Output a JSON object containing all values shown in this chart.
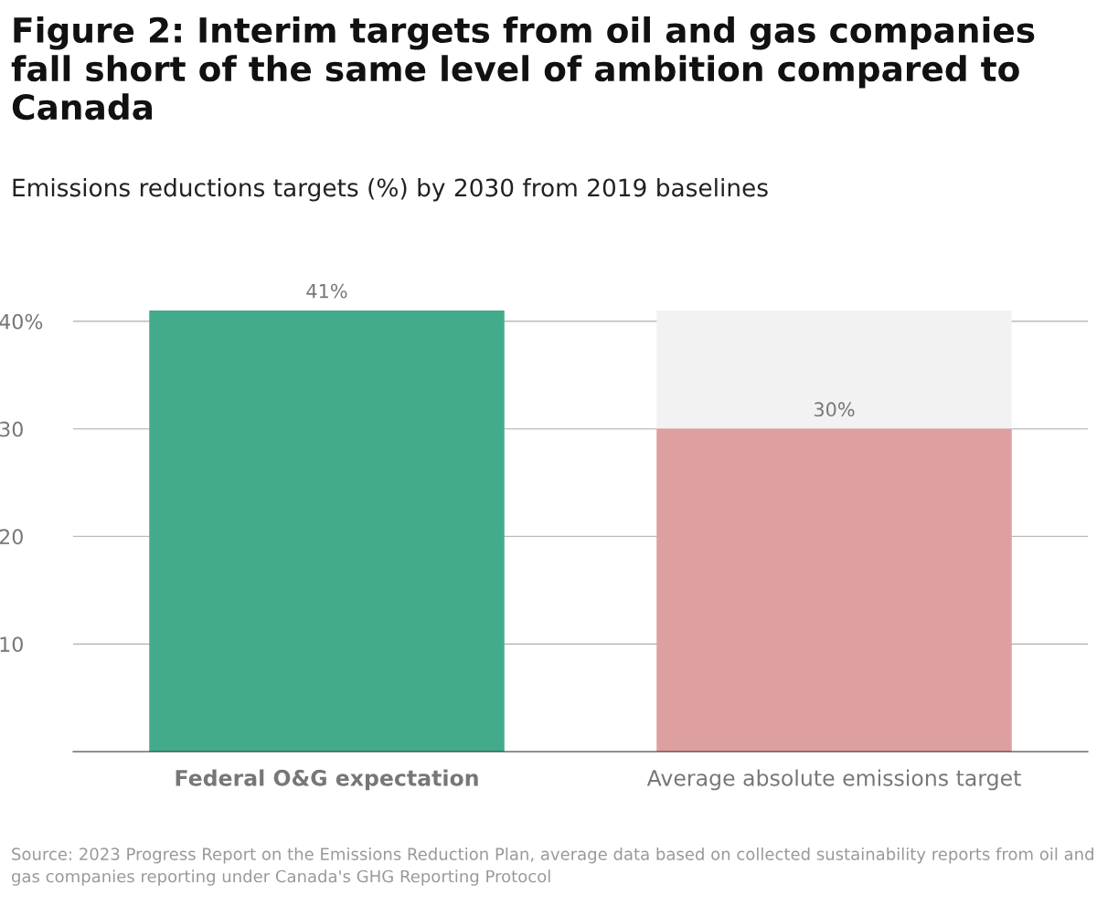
{
  "chart_data": {
    "type": "bar",
    "title": "Figure 2: Interim targets from oil and gas companies fall short of the same level of ambition compared to Canada",
    "subtitle": "Emissions reductions targets (%) by 2030 from 2019 baselines",
    "categories": [
      "Federal O&G expectation",
      "Average absolute emissions target"
    ],
    "stacked": true,
    "series": [
      {
        "colors": [
          "#44aa8c",
          "#de9fa0"
        ],
        "values": [
          41,
          30
        ],
        "value_labels": [
          "41%",
          "30%"
        ]
      },
      {
        "color": "#f2f2f2",
        "values": [
          null,
          11
        ]
      }
    ],
    "ylim": [
      0,
      41
    ],
    "yticks": [
      {
        "value": 10,
        "label": "10"
      },
      {
        "value": 20,
        "label": "20"
      },
      {
        "value": 30,
        "label": "30"
      },
      {
        "value": 40,
        "label": "40%"
      }
    ],
    "grid": "y",
    "legend": false,
    "annotations": [
      "Source: 2023 Progress Report on the Emissions Reduction Plan, average data based on collected sustainability reports from oil and gas companies reporting under Canada's GHG Reporting Protocol"
    ]
  }
}
